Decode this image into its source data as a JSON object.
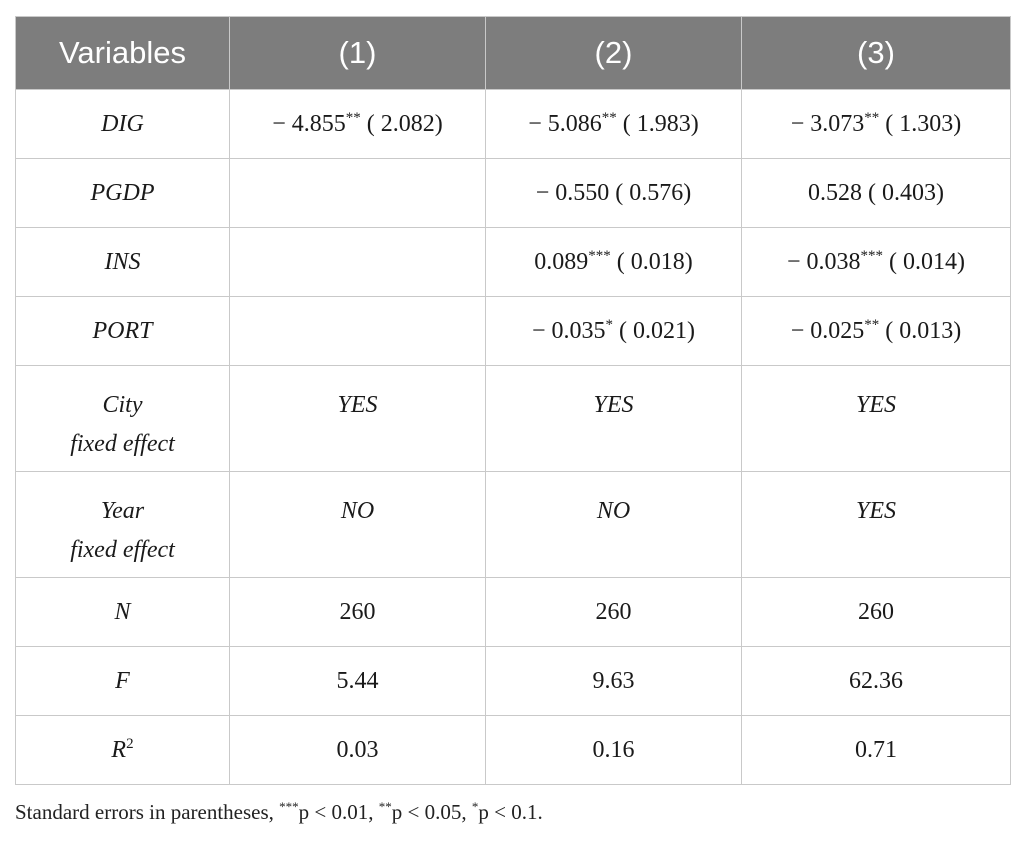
{
  "table": {
    "headers": [
      "Variables",
      "(1)",
      "(2)",
      "(3)"
    ],
    "rows": [
      {
        "variable": "DIG",
        "cells": [
          {
            "coef": "− 4.855",
            "stars": "**",
            "se": "( 2.082)"
          },
          {
            "coef": "− 5.086",
            "stars": "**",
            "se": "( 1.983)"
          },
          {
            "coef": "− 3.073",
            "stars": "**",
            "se": "( 1.303)"
          }
        ]
      },
      {
        "variable": "PGDP",
        "cells": [
          {
            "coef": "",
            "stars": "",
            "se": ""
          },
          {
            "coef": "− 0.550",
            "stars": "",
            "se": "( 0.576)"
          },
          {
            "coef": "0.528",
            "stars": "",
            "se": "( 0.403)"
          }
        ]
      },
      {
        "variable": "INS",
        "cells": [
          {
            "coef": "",
            "stars": "",
            "se": ""
          },
          {
            "coef": "0.089",
            "stars": "***",
            "se": "( 0.018)"
          },
          {
            "coef": "− 0.038",
            "stars": "***",
            "se": "( 0.014)"
          }
        ]
      },
      {
        "variable": "PORT",
        "cells": [
          {
            "coef": "",
            "stars": "",
            "se": ""
          },
          {
            "coef": "− 0.035",
            "stars": "*",
            "se": "( 0.021)"
          },
          {
            "coef": "− 0.025",
            "stars": "**",
            "se": "( 0.013)"
          }
        ]
      }
    ],
    "fixed_effects": [
      {
        "label_line1": "City",
        "label_line2": "fixed effect",
        "values": [
          "YES",
          "YES",
          "YES"
        ]
      },
      {
        "label_line1": "Year",
        "label_line2": "fixed effect",
        "values": [
          "NO",
          "NO",
          "YES"
        ]
      }
    ],
    "stats": [
      {
        "label": "N",
        "values": [
          "260",
          "260",
          "260"
        ]
      },
      {
        "label": "F",
        "values": [
          "5.44",
          "9.63",
          "62.36"
        ]
      },
      {
        "label": "R",
        "label_sup": "2",
        "values": [
          "0.03",
          "0.16",
          "0.71"
        ]
      }
    ]
  },
  "note": {
    "prefix": "Standard errors in parentheses, ",
    "s1": "***",
    "t1": "p < 0.01, ",
    "s2": "**",
    "t2": "p < 0.05, ",
    "s3": "*",
    "t3": "p < 0.1."
  }
}
